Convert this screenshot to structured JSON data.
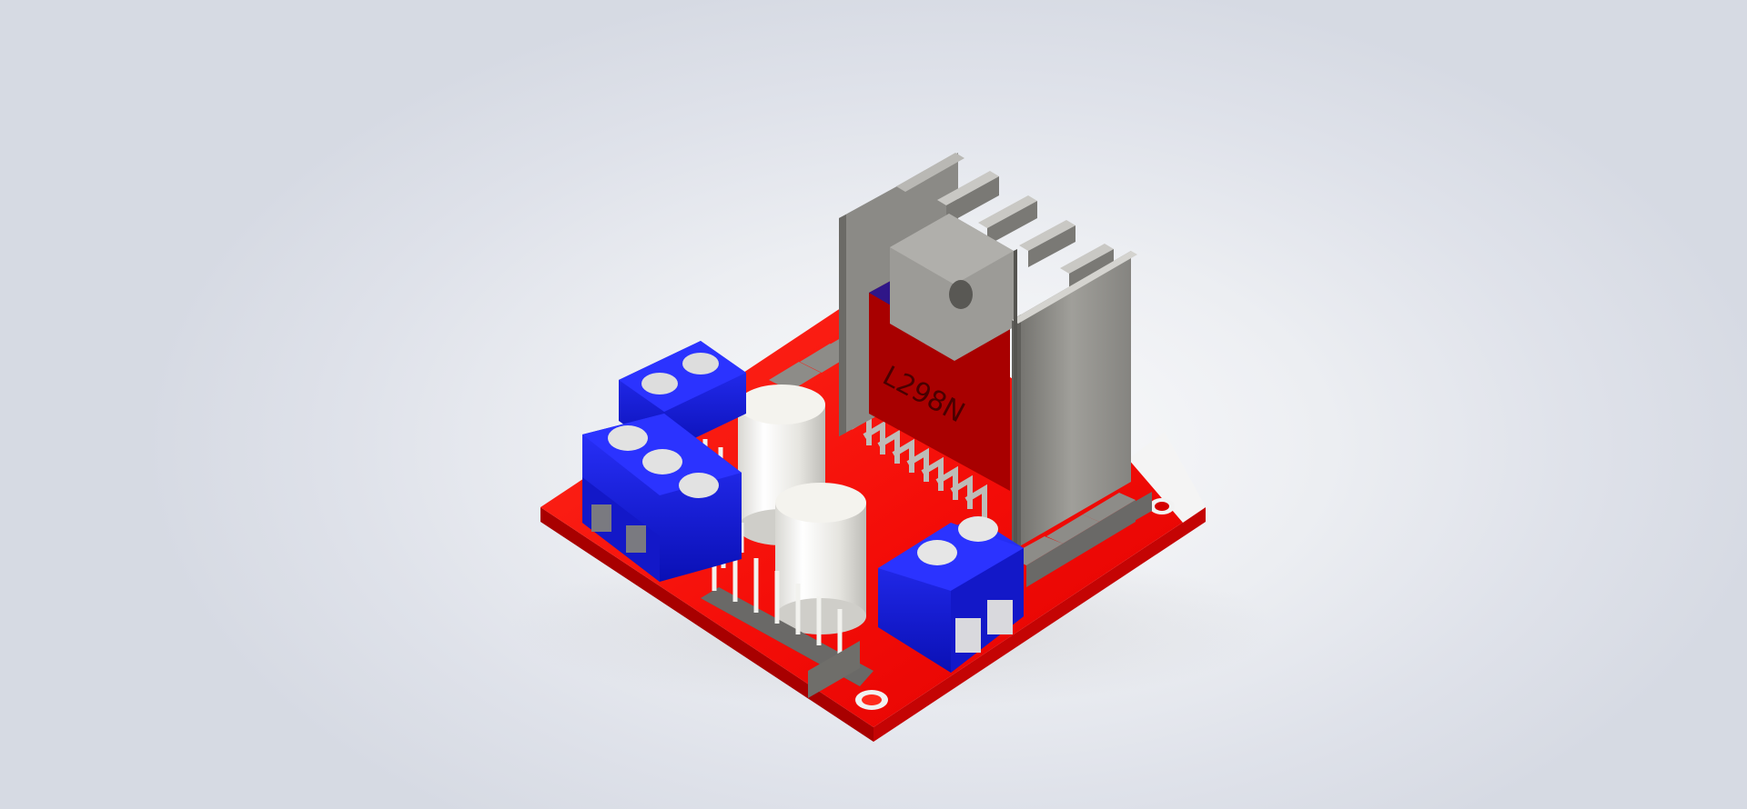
{
  "scene": {
    "background_color": "#e6e8ee",
    "subject": "l298n-motor-driver-board-render"
  },
  "board": {
    "pcb_color": "#ff1a12",
    "terminal_color": "#1418e0",
    "heatsink_color": "#8f8e8a",
    "capacitor_color": "#ecebe6",
    "chip_label": "L298N"
  }
}
